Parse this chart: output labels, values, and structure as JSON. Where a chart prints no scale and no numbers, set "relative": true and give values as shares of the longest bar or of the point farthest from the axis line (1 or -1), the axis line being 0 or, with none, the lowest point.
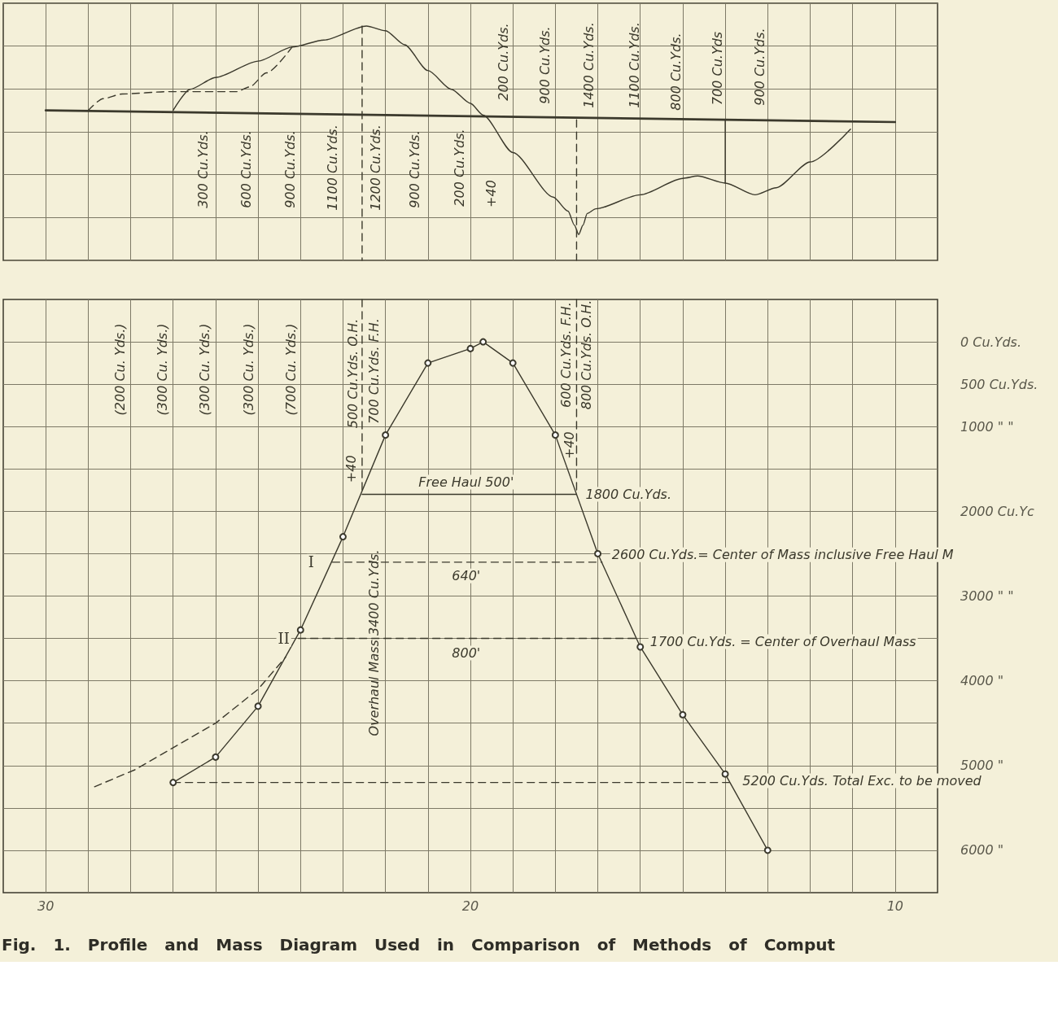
{
  "chart_data": [
    {
      "type": "line",
      "relative": true,
      "xlim": [
        31,
        9
      ],
      "xticks": [
        30,
        {
          "value": 29,
          "label": null
        },
        {
          "value": 28,
          "label": null
        },
        {
          "value": 27,
          "label": null
        },
        {
          "value": 26,
          "label": null
        },
        {
          "value": 25,
          "label": null
        },
        {
          "value": 24,
          "label": null
        },
        {
          "value": 23,
          "label": null
        },
        {
          "value": 22,
          "label": null
        },
        {
          "value": 21,
          "label": null
        },
        20,
        {
          "value": 19,
          "label": null
        },
        {
          "value": 18,
          "label": null
        },
        {
          "value": 17,
          "label": null
        },
        {
          "value": 16,
          "label": null
        },
        {
          "value": 15,
          "label": null
        },
        {
          "value": 14,
          "label": null
        },
        {
          "value": 13,
          "label": null
        },
        {
          "value": 12,
          "label": null
        },
        {
          "value": 11,
          "label": null
        },
        10
      ],
      "tick_labels": false,
      "grid": true,
      "series": [
        {
          "color": "#3b392c",
          "x": [
            27,
            26.6,
            26,
            25,
            24.2,
            23.45,
            22.45,
            22,
            21.55,
            21,
            20.45,
            20,
            19.7,
            19,
            18.05,
            17.7,
            17.55,
            17.45,
            17.35,
            17.25,
            17.05,
            16,
            15,
            14.65,
            14,
            13.3,
            12.8,
            12,
            11.05
          ],
          "values": [
            0.64,
            0.73,
            0.78,
            0.85,
            0.91,
            0.94,
            1,
            0.98,
            0.92,
            0.81,
            0.73,
            0.67,
            0.62,
            0.46,
            0.27,
            0.21,
            0.15,
            0.11,
            0.15,
            0.2,
            0.22,
            0.28,
            0.35,
            0.36,
            0.33,
            0.28,
            0.31,
            0.42,
            0.56
          ]
        },
        {
          "color": "#3b392c",
          "line_style": "dashed",
          "x": [
            29,
            28.65,
            28.2,
            27.1,
            25.5,
            25.2,
            24.8,
            24.2
          ],
          "values": [
            0.64,
            0.69,
            0.71,
            0.72,
            0.72,
            0.74,
            0.8,
            0.91
          ]
        },
        {
          "color": "#3b392c",
          "x": [
            30,
            10
          ],
          "values": [
            0.64,
            0.59
          ]
        },
        {
          "color": "#3b392c",
          "x": [
            14,
            14
          ],
          "values": [
            0.6,
            0.33
          ]
        },
        {
          "color": "#3b392c",
          "line_style": "dashed",
          "x": [
            22.55,
            22.55
          ],
          "values": [
            1,
            0
          ]
        },
        {
          "color": "#3b392c",
          "line_style": "dashed",
          "x": [
            17.5,
            17.5
          ],
          "values": [
            0.6,
            0
          ]
        }
      ],
      "annotations": [
        "300 Cu.Yds.",
        "600 Cu.Yds.",
        "900 Cu.Yds.",
        "1100 Cu.Yds.",
        "1200 Cu.Yds.",
        "900 Cu.Yds.",
        "200 Cu.Yds.",
        "+40",
        "200 Cu.Yds.",
        "900 Cu.Yds.",
        "1400 Cu.Yds.",
        "1100 Cu.Yds.",
        "800 Cu.Yds.",
        "700 Cu.Yds",
        "900 Cu.Yds."
      ]
    },
    {
      "type": "line",
      "title": "Fig. 1. Profile and Mass Diagram Used in Comparison of Methods of Comput",
      "xlim": [
        31,
        9
      ],
      "ylim": [
        6500,
        -500
      ],
      "xticks": [
        30,
        {
          "value": 29,
          "label": null
        },
        {
          "value": 28,
          "label": null
        },
        {
          "value": 27,
          "label": null
        },
        {
          "value": 26,
          "label": null
        },
        {
          "value": 25,
          "label": null
        },
        {
          "value": 24,
          "label": null
        },
        {
          "value": 23,
          "label": null
        },
        {
          "value": 22,
          "label": null
        },
        {
          "value": 21,
          "label": null
        },
        20,
        {
          "value": 19,
          "label": null
        },
        {
          "value": 18,
          "label": null
        },
        {
          "value": 17,
          "label": null
        },
        {
          "value": 16,
          "label": null
        },
        {
          "value": 15,
          "label": null
        },
        {
          "value": 14,
          "label": null
        },
        {
          "value": 13,
          "label": null
        },
        {
          "value": 12,
          "label": null
        },
        {
          "value": 11,
          "label": null
        },
        10
      ],
      "yticks": [
        {
          "value": 0,
          "label": "0 Cu.Yds."
        },
        {
          "value": 500,
          "label": "500 Cu.Yds."
        },
        {
          "value": 1000,
          "label": "1000 \" \""
        },
        {
          "value": 1500,
          "label": null
        },
        {
          "value": 2000,
          "label": "2000 Cu.Yc"
        },
        {
          "value": 2500,
          "label": null
        },
        {
          "value": 3000,
          "label": "3000 \" \""
        },
        {
          "value": 3500,
          "label": null
        },
        {
          "value": 4000,
          "label": "4000 \""
        },
        {
          "value": 4500,
          "label": null
        },
        {
          "value": 5000,
          "label": "5000 \""
        },
        {
          "value": 5500,
          "label": null
        },
        {
          "value": 6000,
          "label": "6000 \""
        }
      ],
      "grid": true,
      "series": [
        {
          "color": "#3b392c",
          "marker": "circle",
          "x": [
            27,
            26,
            25,
            24,
            23,
            22,
            21,
            20,
            19.7,
            19,
            18,
            17,
            16,
            15,
            14,
            13
          ],
          "values": [
            5200,
            4900,
            4300,
            3400,
            2300,
            1100,
            250,
            80,
            0,
            250,
            1100,
            2500,
            3600,
            4400,
            5100,
            6000
          ]
        },
        {
          "color": "#3b392c",
          "line_style": "dashed",
          "x": [
            28.85,
            27.9,
            26,
            25,
            24.35
          ],
          "values": [
            5250,
            5050,
            4500,
            4100,
            3720
          ]
        },
        {
          "color": "#3b392c",
          "x": [
            22.55,
            17.5
          ],
          "values": [
            1800,
            1800
          ]
        },
        {
          "color": "#3b392c",
          "line_style": "dashed",
          "x": [
            23.25,
            16.9
          ],
          "values": [
            2600,
            2600
          ]
        },
        {
          "color": "#3b392c",
          "line_style": "dashed",
          "x": [
            24.05,
            16
          ],
          "values": [
            3500,
            3500
          ]
        },
        {
          "color": "#3b392c",
          "line_style": "dashed",
          "x": [
            27,
            13.9
          ],
          "values": [
            5200,
            5200
          ]
        },
        {
          "color": "#3b392c",
          "line_style": "dashed",
          "x": [
            22.55,
            22.55
          ],
          "values": [
            -500,
            1800
          ]
        },
        {
          "color": "#3b392c",
          "line_style": "dashed",
          "x": [
            17.5,
            17.5
          ],
          "values": [
            -500,
            1800
          ]
        }
      ],
      "annotations": [
        "(200 Cu. Yds.)",
        "(300 Cu. Yds.)",
        "(300 Cu. Yds.)",
        "(300 Cu. Yds.)",
        "(700 Cu. Yds.)",
        {
          "text": "+40",
          "x": 22.55,
          "y": 1500
        },
        "500 Cu.Yds. O.H.",
        "700 Cu.Yds. F.H.",
        "Overhaul Mass 3400 Cu.Yds.",
        {
          "text": "+40",
          "x": 17.5,
          "y": 1220
        },
        "600 Cu.Yds. F.H.",
        "800 Cu.Yds. O.H.",
        {
          "text": "Free Haul 500'",
          "x": 20.1,
          "y": 1800
        },
        {
          "text": "1800 Cu.Yds.",
          "x": 17.5,
          "y": 1800
        },
        {
          "text": "I",
          "x": 23.25,
          "y": 2600
        },
        {
          "text": "640'",
          "x": 20.1,
          "y": 2600
        },
        {
          "text": "2600 Cu.Yds.= Center of Mass inclusive Free Haul M",
          "x": 16.9,
          "y": 2600
        },
        {
          "text": "II",
          "x": 24.05,
          "y": 3500
        },
        {
          "text": "800'",
          "x": 20.1,
          "y": 3500
        },
        {
          "text": "1700 Cu.Yds. = Center of Overhaul Mass",
          "x": 16,
          "y": 3500
        },
        {
          "text": "5200 Cu.Yds. Total Exc. to be moved",
          "x": 13.9,
          "y": 5200
        }
      ]
    }
  ]
}
